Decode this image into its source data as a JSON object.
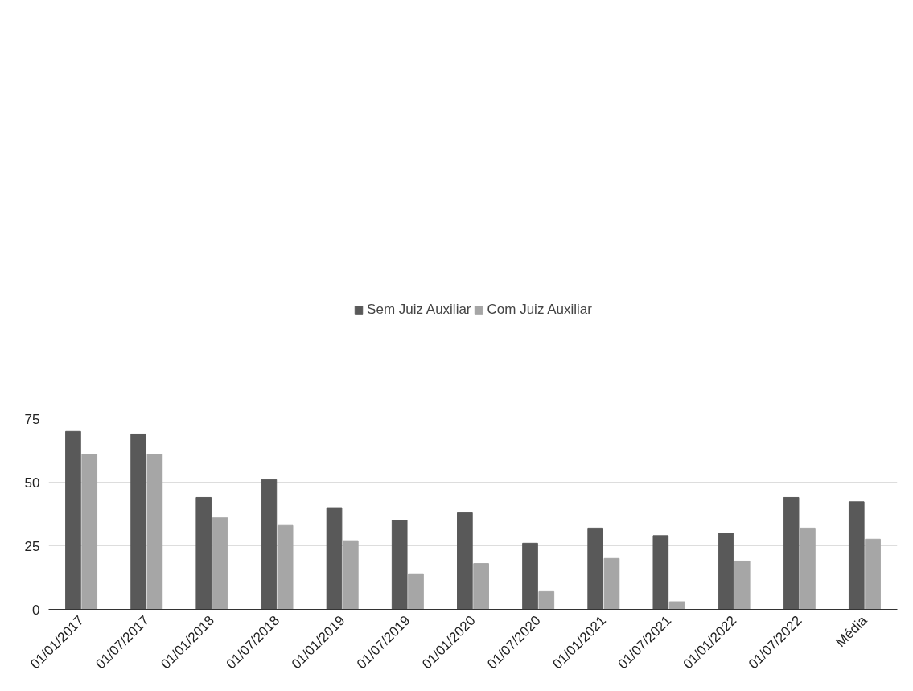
{
  "chart_data": {
    "type": "bar",
    "categories": [
      "01/01/2017",
      "01/07/2017",
      "01/01/2018",
      "01/07/2018",
      "01/01/2019",
      "01/07/2019",
      "01/01/2020",
      "01/07/2020",
      "01/01/2021",
      "01/07/2021",
      "01/01/2022",
      "01/07/2022",
      "Média"
    ],
    "series": [
      {
        "name": "Sem Juiz Auxiliar",
        "color": "#595959",
        "values": [
          70,
          69,
          44,
          51,
          40,
          35,
          38,
          26,
          32,
          29,
          30,
          44,
          42.3
        ]
      },
      {
        "name": "Com Juiz Auxiliar",
        "color": "#a6a6a6",
        "values": [
          61,
          61,
          36,
          33,
          27,
          14,
          18,
          7,
          20,
          3,
          19,
          32,
          27.6
        ]
      }
    ],
    "ylim": [
      0,
      75
    ],
    "yticks": [
      0,
      25,
      50,
      75
    ],
    "grid": "y",
    "legend": "top"
  }
}
